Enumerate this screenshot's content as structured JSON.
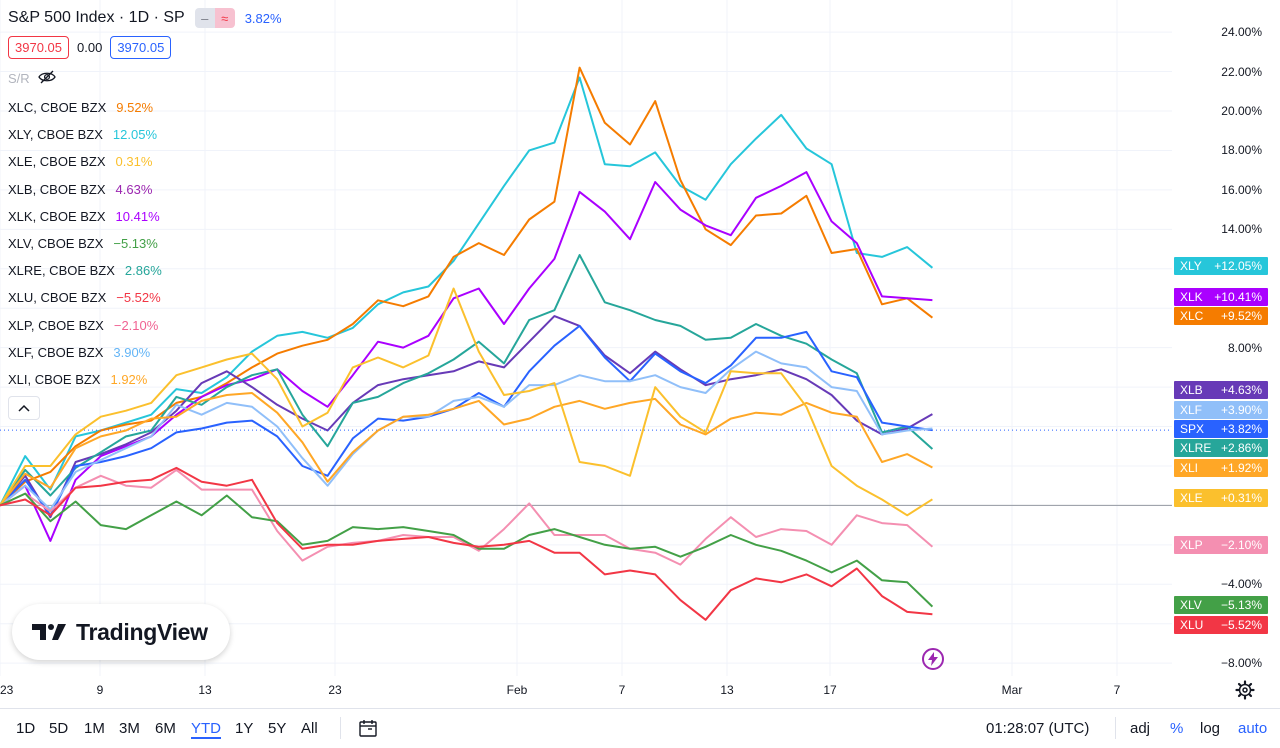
{
  "header": {
    "title": "S&P 500 Index · 1D · SP",
    "mode_btn_1": "–",
    "mode_btn_2": "≈",
    "change": "3.82%"
  },
  "prices": {
    "open": "3970.05",
    "spread": "0.00",
    "close": "3970.05"
  },
  "sr_label": "S/R",
  "legend": [
    {
      "name": "XLC, CBOE BZX",
      "value": "9.52%",
      "color": "#f57c00"
    },
    {
      "name": "XLY, CBOE BZX",
      "value": "12.05%",
      "color": "#26c6da"
    },
    {
      "name": "XLE, CBOE BZX",
      "value": "0.31%",
      "color": "#fbc02d"
    },
    {
      "name": "XLB, CBOE BZX",
      "value": "4.63%",
      "color": "#9c27b0"
    },
    {
      "name": "XLK, CBOE BZX",
      "value": "10.41%",
      "color": "#aa00ff"
    },
    {
      "name": "XLV, CBOE BZX",
      "value": "−5.13%",
      "color": "#43a047"
    },
    {
      "name": "XLRE, CBOE BZX",
      "value": "2.86%",
      "color": "#26a69a"
    },
    {
      "name": "XLU, CBOE BZX",
      "value": "−5.52%",
      "color": "#f23645"
    },
    {
      "name": "XLP, CBOE BZX",
      "value": "−2.10%",
      "color": "#f06292"
    },
    {
      "name": "XLF, CBOE BZX",
      "value": "3.90%",
      "color": "#64b5f6"
    },
    {
      "name": "XLI, CBOE BZX",
      "value": "1.92%",
      "color": "#ffa726"
    }
  ],
  "y_ticks": [
    "24.00%",
    "22.00%",
    "20.00%",
    "18.00%",
    "16.00%",
    "14.00%",
    "8.00%",
    "−4.00%",
    "−6.00%",
    "−8.00%"
  ],
  "x_ticks": [
    "23",
    "9",
    "13",
    "23",
    "Feb",
    "7",
    "13",
    "17",
    "Mar",
    "7"
  ],
  "badges": [
    {
      "label": "XLY",
      "value": "+12.05%",
      "color": "#26c6da"
    },
    {
      "label": "XLK",
      "value": "+10.41%",
      "color": "#aa00ff"
    },
    {
      "label": "XLC",
      "value": "+9.52%",
      "color": "#f57c00"
    },
    {
      "label": "XLB",
      "value": "+4.63%",
      "color": "#673ab7"
    },
    {
      "label": "XLF",
      "value": "+3.90%",
      "color": "#90bff9"
    },
    {
      "label": "SPX",
      "value": "+3.82%",
      "color": "#2962ff"
    },
    {
      "label": "XLRE",
      "value": "+2.86%",
      "color": "#26a69a"
    },
    {
      "label": "XLI",
      "value": "+1.92%",
      "color": "#ffa726"
    },
    {
      "label": "XLE",
      "value": "+0.31%",
      "color": "#fbc02d"
    },
    {
      "label": "XLP",
      "value": "−2.10%",
      "color": "#f48fb1"
    },
    {
      "label": "XLV",
      "value": "−5.13%",
      "color": "#43a047"
    },
    {
      "label": "XLU",
      "value": "−5.52%",
      "color": "#f23645"
    }
  ],
  "logo_text": "TradingView",
  "bottom_bar": {
    "timeframes": [
      "1D",
      "5D",
      "1M",
      "3M",
      "6M",
      "YTD",
      "1Y",
      "5Y",
      "All"
    ],
    "active": "YTD",
    "time": "01:28:07 (UTC)",
    "adj": "adj",
    "percent": "%",
    "log": "log",
    "auto": "auto"
  },
  "chart_data": {
    "type": "line",
    "title": "S&P 500 Index · 1D · SP",
    "y_unit": "%",
    "ylim": [
      -8,
      24
    ],
    "x": [
      "Dec 30",
      "Jan 3",
      "Jan 4",
      "Jan 5",
      "Jan 6",
      "Jan 9",
      "Jan 10",
      "Jan 11",
      "Jan 12",
      "Jan 13",
      "Jan 17",
      "Jan 18",
      "Jan 19",
      "Jan 20",
      "Jan 23",
      "Jan 24",
      "Jan 25",
      "Jan 26",
      "Jan 27",
      "Jan 30",
      "Jan 31",
      "Feb 1",
      "Feb 2",
      "Feb 3",
      "Feb 6",
      "Feb 7",
      "Feb 8",
      "Feb 9",
      "Feb 10",
      "Feb 13",
      "Feb 14",
      "Feb 15",
      "Feb 16",
      "Feb 17",
      "Feb 21",
      "Feb 22",
      "Feb 23",
      "Feb 24"
    ],
    "series": [
      {
        "name": "XLY",
        "color": "#26c6da",
        "values": [
          0,
          2.5,
          0.8,
          3.5,
          3.8,
          4.2,
          4.6,
          5.9,
          5.7,
          6.5,
          7.8,
          8.6,
          8.8,
          8.5,
          9.0,
          10.2,
          10.8,
          11.1,
          12.4,
          14.3,
          16.2,
          18.0,
          18.4,
          21.7,
          17.3,
          17.2,
          17.9,
          16.2,
          15.5,
          17.3,
          18.6,
          19.8,
          18.1,
          17.3,
          12.8,
          12.6,
          13.1,
          12.05
        ]
      },
      {
        "name": "XLC",
        "color": "#f57c00",
        "values": [
          0,
          1.2,
          1.7,
          3.0,
          3.8,
          4.1,
          4.3,
          5.2,
          5.5,
          6.2,
          7.0,
          7.7,
          8.1,
          8.4,
          9.2,
          10.4,
          10.1,
          10.6,
          12.6,
          13.3,
          12.7,
          14.5,
          15.4,
          22.2,
          19.4,
          18.3,
          20.5,
          16.5,
          14.0,
          13.2,
          14.7,
          14.8,
          15.7,
          12.8,
          13.0,
          10.2,
          10.5,
          9.52
        ]
      },
      {
        "name": "XLK",
        "color": "#aa00ff",
        "values": [
          0,
          1.0,
          -1.8,
          1.3,
          2.5,
          3.0,
          3.5,
          4.6,
          5.5,
          6.1,
          6.4,
          6.9,
          5.8,
          5.0,
          6.6,
          8.3,
          8.0,
          8.6,
          10.5,
          11.0,
          9.2,
          11.0,
          12.5,
          15.9,
          14.9,
          13.5,
          16.4,
          15.0,
          14.2,
          13.7,
          15.6,
          16.2,
          16.9,
          14.4,
          13.3,
          10.6,
          10.5,
          10.41
        ]
      },
      {
        "name": "XLB",
        "color": "#673ab7",
        "values": [
          0,
          1.5,
          -0.6,
          2.2,
          2.6,
          3.1,
          3.7,
          4.8,
          6.2,
          6.8,
          6.0,
          5.1,
          4.4,
          3.8,
          5.2,
          6.1,
          6.4,
          6.6,
          6.8,
          7.3,
          7.0,
          8.3,
          9.6,
          9.1,
          7.6,
          6.7,
          7.8,
          6.9,
          6.1,
          6.4,
          6.6,
          6.9,
          6.4,
          5.6,
          4.3,
          3.6,
          3.9,
          4.63
        ]
      },
      {
        "name": "XLRE",
        "color": "#26a69a",
        "values": [
          0,
          1.8,
          0.5,
          1.9,
          2.7,
          3.5,
          3.8,
          5.5,
          5.1,
          6.0,
          6.6,
          6.9,
          4.6,
          3.0,
          5.2,
          5.5,
          6.2,
          6.7,
          7.4,
          8.3,
          7.2,
          9.4,
          9.9,
          12.7,
          10.3,
          9.9,
          9.4,
          9.1,
          8.4,
          8.5,
          9.2,
          8.6,
          8.2,
          7.4,
          6.7,
          3.7,
          4.0,
          2.86
        ]
      },
      {
        "name": "SPX",
        "color": "#2962ff",
        "values": [
          0,
          1.3,
          -0.5,
          2.0,
          2.2,
          2.5,
          2.9,
          3.7,
          3.9,
          4.2,
          4.3,
          3.5,
          2.0,
          1.5,
          3.4,
          4.4,
          4.3,
          4.5,
          4.9,
          5.7,
          5.0,
          6.8,
          8.1,
          9.1,
          7.5,
          6.3,
          7.7,
          6.8,
          6.2,
          7.1,
          8.5,
          8.5,
          8.8,
          6.8,
          6.5,
          4.2,
          4.0,
          3.82
        ]
      },
      {
        "name": "XLF",
        "color": "#90bff9",
        "values": [
          0,
          1.0,
          -0.2,
          1.7,
          2.3,
          2.9,
          3.5,
          5.1,
          4.6,
          5.2,
          5.0,
          4.0,
          2.4,
          1.0,
          2.6,
          3.8,
          4.5,
          4.5,
          5.3,
          5.5,
          5.0,
          6.1,
          6.1,
          6.6,
          6.3,
          6.3,
          6.6,
          6.0,
          5.7,
          6.9,
          7.8,
          7.2,
          7.0,
          6.0,
          5.8,
          3.6,
          3.8,
          3.9
        ]
      },
      {
        "name": "XLI",
        "color": "#ffa726",
        "values": [
          0,
          1.6,
          0.9,
          2.9,
          3.5,
          3.8,
          4.4,
          4.5,
          5.3,
          5.6,
          5.7,
          4.7,
          3.2,
          1.2,
          2.7,
          3.8,
          4.5,
          4.6,
          4.9,
          5.3,
          4.1,
          4.4,
          5.0,
          5.3,
          4.9,
          5.2,
          5.4,
          4.1,
          3.6,
          4.4,
          4.7,
          4.6,
          5.2,
          4.7,
          4.5,
          2.2,
          2.6,
          1.92
        ]
      },
      {
        "name": "XLE",
        "color": "#fbc02d",
        "values": [
          0,
          2.0,
          2.0,
          3.6,
          4.5,
          4.8,
          5.2,
          6.6,
          7.0,
          7.4,
          7.7,
          6.4,
          4.0,
          4.7,
          7.0,
          7.5,
          7.0,
          7.6,
          11.0,
          7.8,
          5.6,
          5.8,
          6.2,
          2.2,
          2.0,
          1.5,
          6.0,
          4.5,
          3.7,
          6.8,
          6.7,
          6.7,
          5.0,
          2.0,
          1.0,
          0.3,
          -0.5,
          0.31
        ]
      },
      {
        "name": "XLP",
        "color": "#f48fb1",
        "values": [
          0,
          0.6,
          -0.3,
          0.9,
          1.5,
          1.0,
          0.9,
          1.8,
          0.8,
          0.8,
          0.8,
          -1.3,
          -2.8,
          -2.1,
          -1.9,
          -1.8,
          -1.5,
          -1.6,
          -1.6,
          -2.3,
          -1.2,
          0.1,
          -1.5,
          -1.5,
          -1.5,
          -2.2,
          -2.4,
          -3.0,
          -1.7,
          -0.6,
          -1.6,
          -1.2,
          -1.3,
          -2.0,
          -0.5,
          -0.9,
          -1.0,
          -2.1
        ]
      },
      {
        "name": "XLV",
        "color": "#43a047",
        "values": [
          0,
          0.6,
          -0.8,
          0.2,
          -1.0,
          -1.2,
          -0.5,
          0.2,
          -0.5,
          0.5,
          -0.6,
          -0.8,
          -2.0,
          -1.8,
          -1.1,
          -1.2,
          -1.1,
          -1.3,
          -1.5,
          -2.2,
          -2.2,
          -1.5,
          -1.2,
          -1.6,
          -2.0,
          -2.2,
          -2.1,
          -2.6,
          -2.1,
          -1.5,
          -2.0,
          -2.3,
          -2.8,
          -3.4,
          -2.8,
          -3.8,
          -3.9,
          -5.13
        ]
      },
      {
        "name": "XLU",
        "color": "#f23645",
        "values": [
          0,
          0.3,
          -0.5,
          0.9,
          1.0,
          1.2,
          1.3,
          1.9,
          1.2,
          1.0,
          1.3,
          -0.9,
          -2.2,
          -2.0,
          -2.0,
          -1.8,
          -1.7,
          -1.6,
          -1.9,
          -2.1,
          -2.0,
          -1.8,
          -2.4,
          -2.4,
          -3.5,
          -3.3,
          -3.5,
          -4.8,
          -5.8,
          -4.3,
          -3.7,
          -3.9,
          -3.5,
          -4.1,
          -3.2,
          -4.6,
          -5.4,
          -5.52
        ]
      }
    ]
  }
}
